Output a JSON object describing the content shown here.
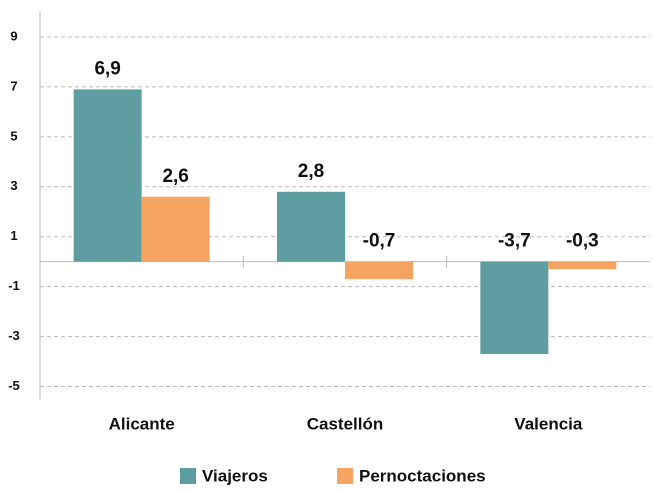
{
  "chart_data": {
    "type": "bar",
    "categories": [
      "Alicante",
      "Castellón",
      "Valencia"
    ],
    "series": [
      {
        "name": "Viajeros",
        "color": "#5f9ea0",
        "values": [
          6.9,
          2.8,
          -3.7
        ],
        "value_labels": [
          "6,9",
          "2,8",
          "-3,7"
        ]
      },
      {
        "name": "Pernoctaciones",
        "color": "#f4a460",
        "values": [
          2.6,
          -0.7,
          -0.3
        ],
        "value_labels": [
          "2,6",
          "-0,7",
          "-0,3"
        ]
      }
    ],
    "ylim": [
      -5.5,
      10
    ],
    "yticks": [
      9,
      7,
      5,
      3,
      1,
      -1,
      -3,
      -5
    ],
    "grid": true,
    "legend": "bottom"
  }
}
